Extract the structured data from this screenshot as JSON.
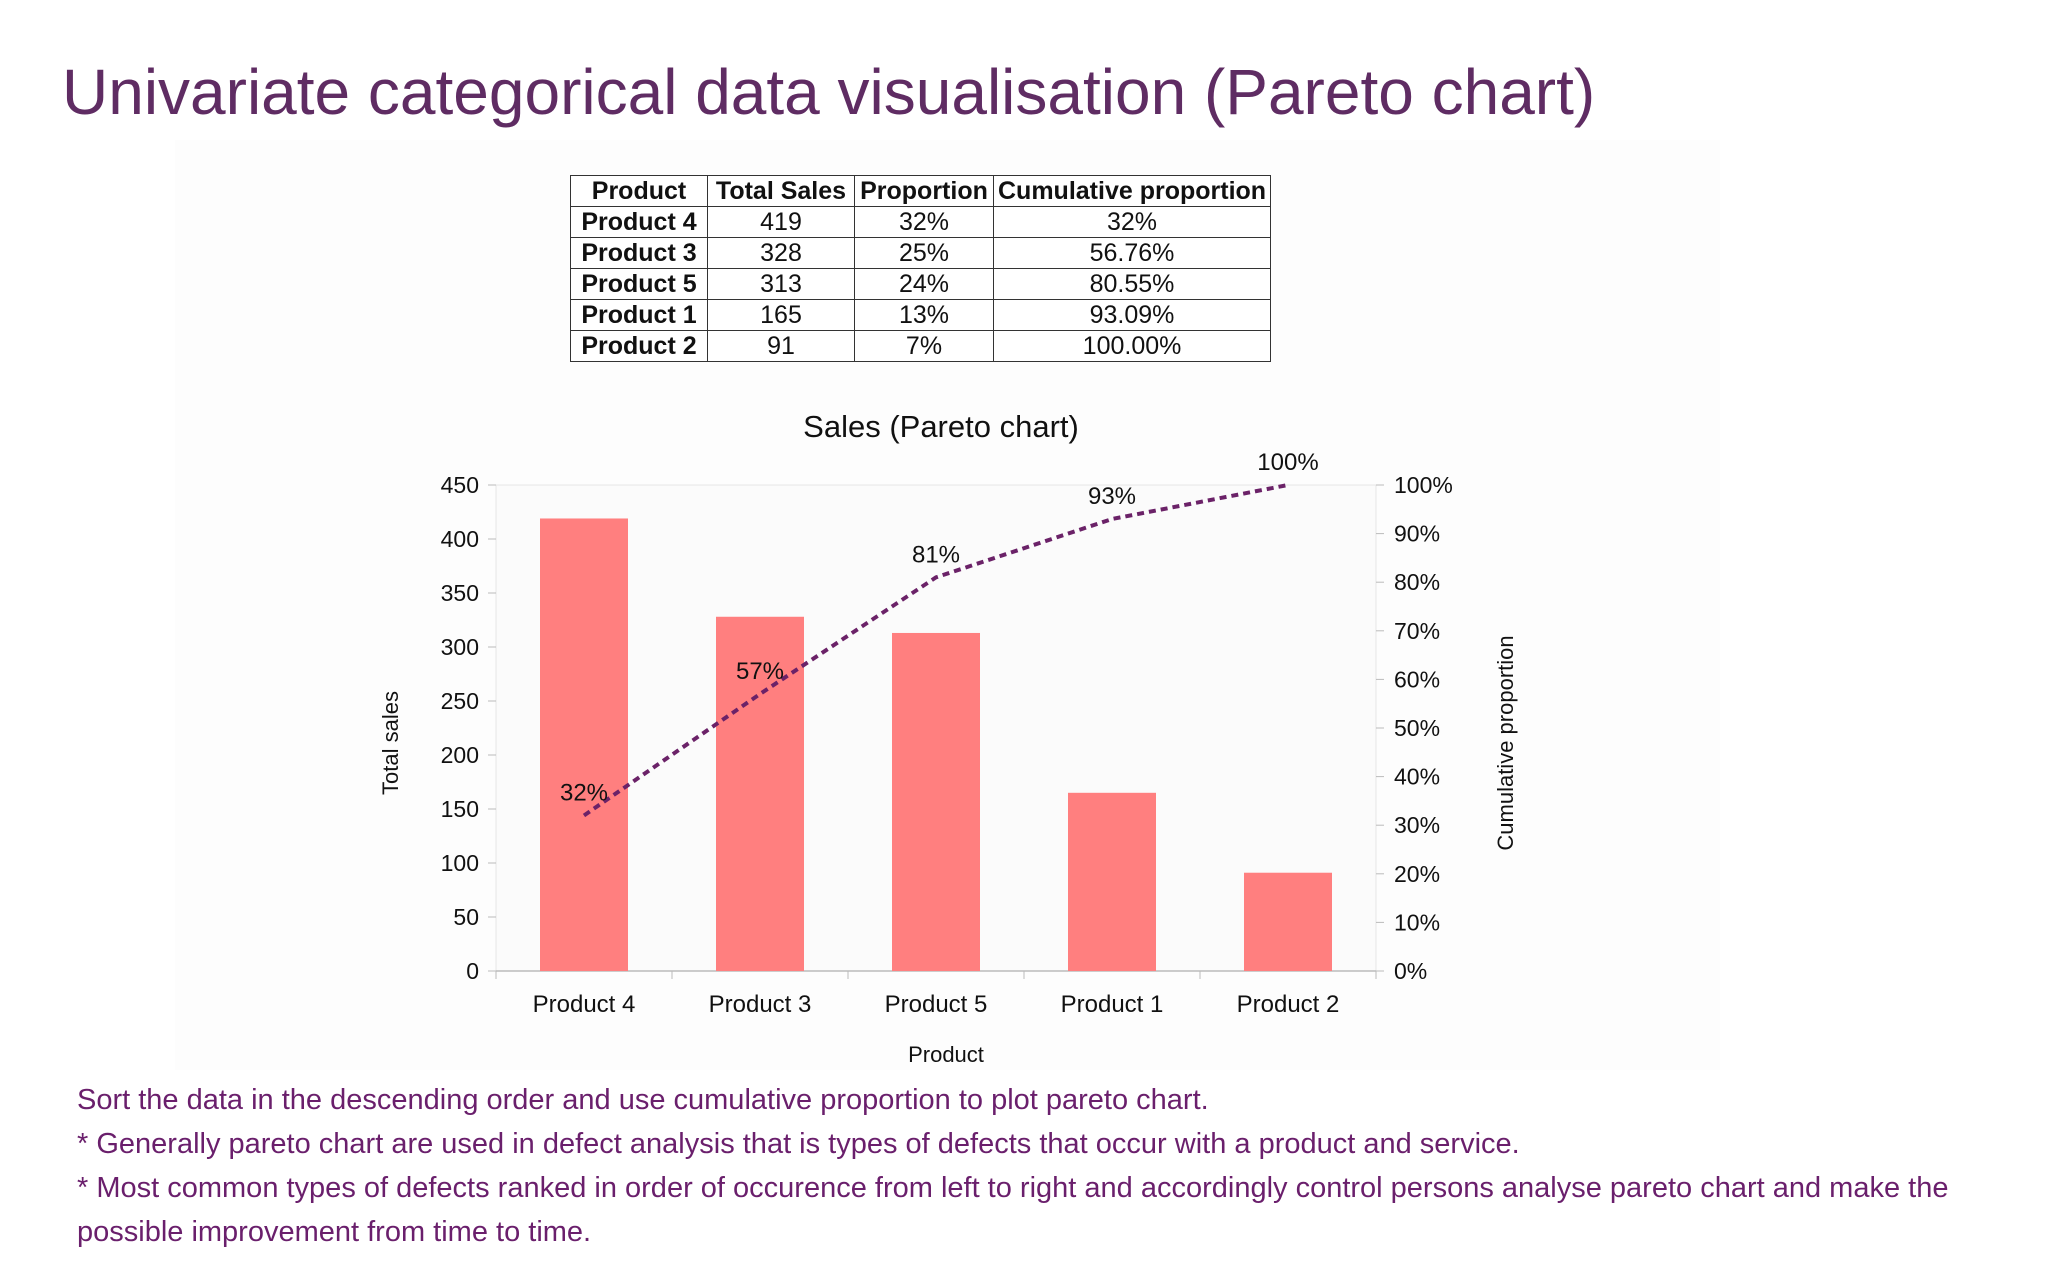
{
  "page": {
    "title": "Univariate categorical data visualisation (Pareto chart)"
  },
  "table": {
    "headers": [
      "Product",
      "Total Sales",
      "Proportion",
      "Cumulative proportion"
    ],
    "rows": [
      [
        "Product 4",
        "419",
        "32%",
        "32%"
      ],
      [
        "Product 3",
        "328",
        "25%",
        "56.76%"
      ],
      [
        "Product 5",
        "313",
        "24%",
        "80.55%"
      ],
      [
        "Product 1",
        "165",
        "13%",
        "93.09%"
      ],
      [
        "Product 2",
        "91",
        "7%",
        "100.00%"
      ]
    ]
  },
  "chart_data": {
    "type": "bar",
    "title": "Sales (Pareto chart)",
    "xlabel": "Product",
    "ylabel": "Total sales",
    "y2label": "Cumulative proportion",
    "categories": [
      "Product 4",
      "Product 3",
      "Product 5",
      "Product 1",
      "Product 2"
    ],
    "ylim": [
      0,
      450
    ],
    "yticks": [
      0,
      50,
      100,
      150,
      200,
      250,
      300,
      350,
      400,
      450
    ],
    "y2lim": [
      0,
      100
    ],
    "y2ticks": [
      "0%",
      "10%",
      "20%",
      "30%",
      "40%",
      "50%",
      "60%",
      "70%",
      "80%",
      "90%",
      "100%"
    ],
    "series": [
      {
        "values": [
          419,
          328,
          313,
          165,
          91
        ],
        "type": "bar",
        "color": "#ff7f7f"
      },
      {
        "values": [
          32,
          57,
          81,
          93,
          100
        ],
        "type": "line",
        "axis": "y2",
        "style": "dashed",
        "color": "#6b2268",
        "labels": [
          "32%",
          "57%",
          "81%",
          "93%",
          "100%"
        ]
      }
    ],
    "grid": false,
    "legend": "none"
  },
  "notes": [
    "Sort the data in the descending order and use cumulative proportion to plot pareto chart.",
    "* Generally pareto chart are used in defect analysis that is types of defects that occur with a product and service.",
    "* Most common types of defects ranked in order of occurence from left to right and accordingly control persons analyse pareto chart and make the possible improvement from time to time."
  ],
  "colors": {
    "title": "#5f2c63",
    "notes": "#6a1f6c",
    "bar": "#ff7f7f",
    "line": "#6b2268"
  }
}
